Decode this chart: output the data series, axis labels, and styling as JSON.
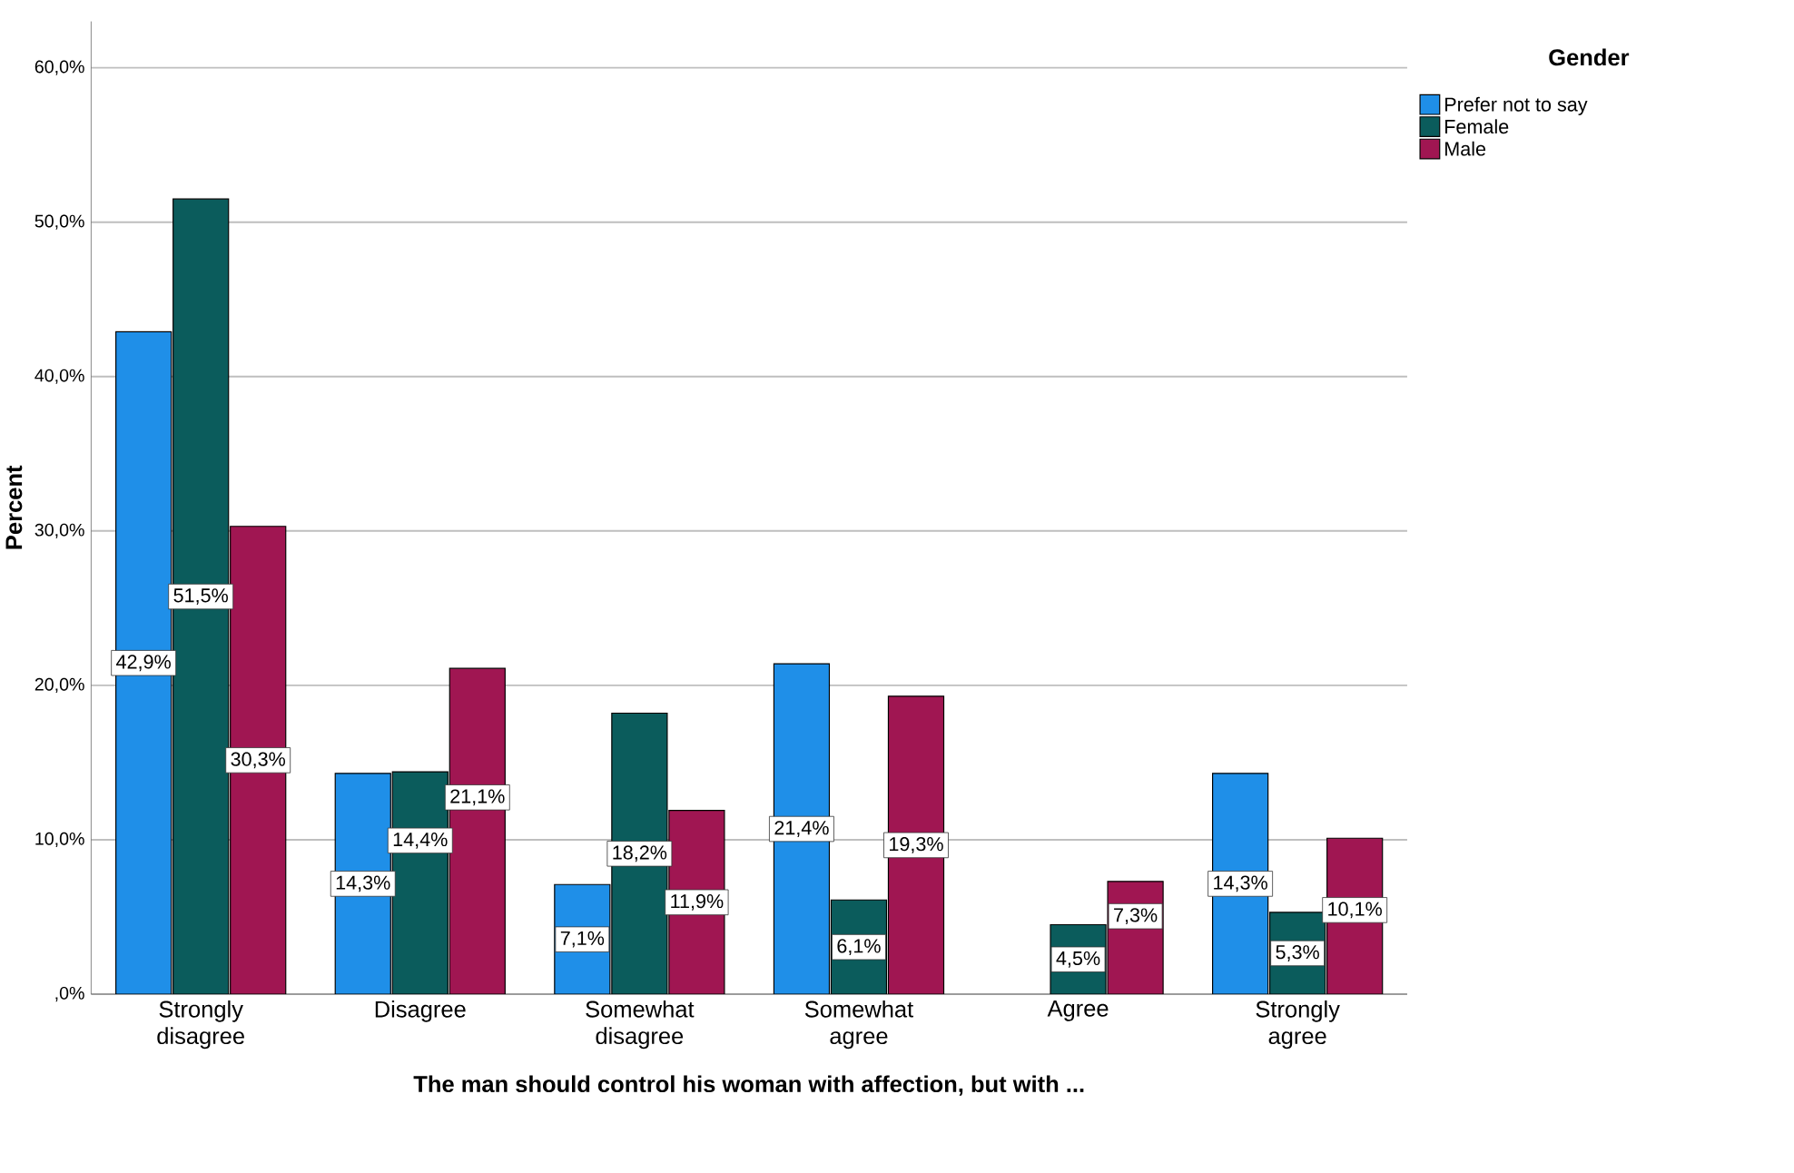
{
  "chart_data": {
    "type": "bar",
    "xlabel": "The man should control his woman with affection, but with ...",
    "ylabel": "Percent",
    "legend_title": "Gender",
    "legend": "top right",
    "grid": "y",
    "categories": [
      "Strongly disagree",
      "Disagree",
      "Somewhat disagree",
      "Somewhat agree",
      "Agree",
      "Strongly agree"
    ],
    "ylim": [
      0,
      63
    ],
    "yticks": [
      {
        "value": 0,
        "label": ",0%"
      },
      {
        "value": 10,
        "label": "10,0%"
      },
      {
        "value": 20,
        "label": "20,0%"
      },
      {
        "value": 30,
        "label": "30,0%"
      },
      {
        "value": 40,
        "label": "40,0%"
      },
      {
        "value": 50,
        "label": "50,0%"
      },
      {
        "value": 60,
        "label": "60,0%"
      }
    ],
    "series": [
      {
        "name": "Prefer not to say",
        "color": "#1f8fe8",
        "values": [
          42.9,
          14.3,
          7.1,
          21.4,
          0,
          14.3
        ],
        "value_labels": [
          "42,9%",
          "14,3%",
          "7,1%",
          "21,4%",
          null,
          "14,3%"
        ]
      },
      {
        "name": "Female",
        "color": "#0b5c5c",
        "values": [
          51.5,
          14.4,
          18.2,
          6.1,
          4.5,
          5.3
        ],
        "value_labels": [
          "51,5%",
          "14,4%",
          "18,2%",
          "6,1%",
          "4,5%",
          "5,3%"
        ]
      },
      {
        "name": "Male",
        "color": "#a01652",
        "values": [
          30.3,
          21.1,
          11.9,
          19.3,
          7.3,
          10.1
        ],
        "value_labels": [
          "30,3%",
          "21,1%",
          "11,9%",
          "19,3%",
          "7,3%",
          "10,1%"
        ]
      }
    ]
  }
}
